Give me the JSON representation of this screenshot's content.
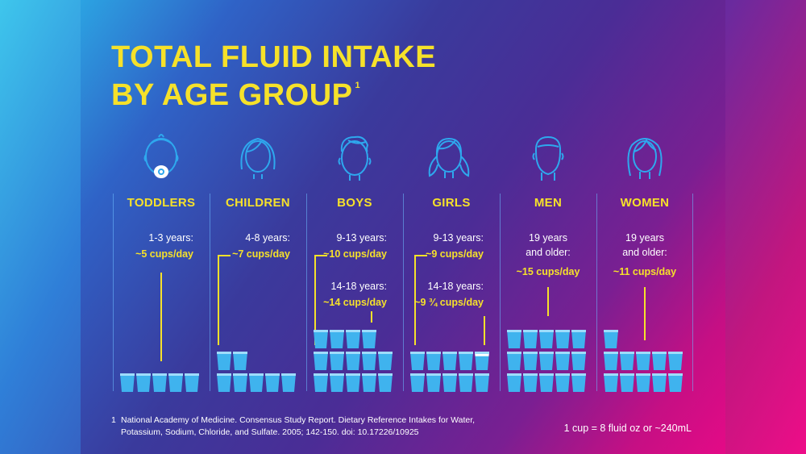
{
  "title": {
    "line1": "TOTAL FLUID INTAKE",
    "line2": "BY AGE GROUP",
    "footnote_ref": "1"
  },
  "chart_data": {
    "type": "pictograph",
    "unit": "cups/day",
    "groups": [
      {
        "name": "TODDLERS",
        "entries": [
          {
            "label": "1-3 years:",
            "value_text": "~5 cups/day",
            "cups": 5
          }
        ]
      },
      {
        "name": "CHILDREN",
        "entries": [
          {
            "label": "4-8 years:",
            "value_text": "~7 cups/day",
            "cups": 7
          }
        ]
      },
      {
        "name": "BOYS",
        "entries": [
          {
            "label": "9-13 years:",
            "value_text": "~10 cups/day",
            "cups": 10
          },
          {
            "label": "14-18 years:",
            "value_text": "~14 cups/day",
            "cups": 14
          }
        ]
      },
      {
        "name": "GIRLS",
        "entries": [
          {
            "label": "9-13 years:",
            "value_text": "~9 cups/day",
            "cups": 9
          },
          {
            "label": "14-18 years:",
            "value_text": "~9 ¾ cups/day",
            "cups": 9.75
          }
        ]
      },
      {
        "name": "MEN",
        "entries": [
          {
            "label_lines": [
              "19 years",
              "and older:"
            ],
            "value_text": "~15 cups/day",
            "cups": 15
          }
        ]
      },
      {
        "name": "WOMEN",
        "entries": [
          {
            "label_lines": [
              "19 years",
              "and older:"
            ],
            "value_text": "~11 cups/day",
            "cups": 11
          }
        ]
      }
    ]
  },
  "footnote": {
    "number": "1",
    "line1": "National Academy of Medicine. Consensus Study Report. Dietary Reference Intakes for Water,",
    "line2": "Potassium, Sodium, Chloride, and Sulfate. 2005; 142-150. doi: 10.17226/10925"
  },
  "cup_note": "1 cup = 8 fluid oz or ~240mL",
  "colors": {
    "title": "#f6e12a",
    "cup": "#3fb3ee",
    "cup_empty": "#ffffff",
    "line": "#f6e12a"
  },
  "icons": [
    "toddler-face-icon",
    "child-face-icon",
    "boy-face-icon",
    "girl-face-icon",
    "man-face-icon",
    "woman-face-icon"
  ]
}
